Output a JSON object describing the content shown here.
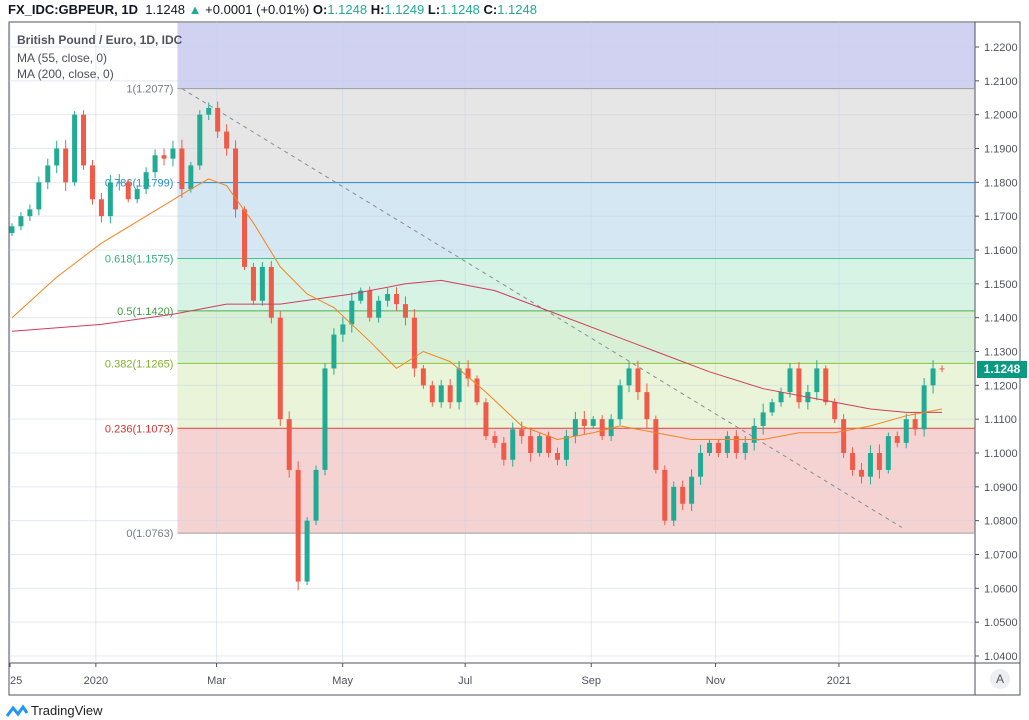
{
  "header": {
    "symbol": "FX_IDC:GBPEUR, 1D",
    "last": "1.1248",
    "arrow": "▲",
    "change": "+0.0001 (+0.01%)",
    "o_label": "O:",
    "o": "1.1248",
    "h_label": "H:",
    "h": "1.1249",
    "l_label": "L:",
    "l": "1.1248",
    "c_label": "C:",
    "c": "1.1248"
  },
  "legend": {
    "title": "British Pound / Euro, 1D, IDC",
    "ma55": "MA (55, close, 0)",
    "ma200": "MA (200, close, 0)"
  },
  "colors": {
    "up": "#22ab94",
    "down": "#f05a48",
    "ma55": "#f5841f",
    "ma200": "#d23c5d",
    "price_tag": "#0a9981"
  },
  "chart_data": {
    "type": "candlestick",
    "ylim": [
      1.04,
      1.2255
    ],
    "yticks": [
      "1.2200",
      "1.2100",
      "1.2000",
      "1.1900",
      "1.1800",
      "1.1700",
      "1.1600",
      "1.1500",
      "1.1400",
      "1.1300",
      "1.1200",
      "1.1100",
      "1.1000",
      "1.0900",
      "1.0800",
      "1.0700",
      "1.0600",
      "1.0500",
      "1.0400"
    ],
    "xticks": [
      {
        "label": "25",
        "i": 0
      },
      {
        "label": "2020",
        "i": 9.6
      },
      {
        "label": "Mar",
        "i": 23.1
      },
      {
        "label": "May",
        "i": 37.2
      },
      {
        "label": "Jul",
        "i": 50.9
      },
      {
        "label": "Sep",
        "i": 65
      },
      {
        "label": "Nov",
        "i": 78.9
      },
      {
        "label": "2021",
        "i": 92.7
      }
    ],
    "closes": [
      1.167,
      1.17,
      1.172,
      1.18,
      1.185,
      1.19,
      1.18,
      1.2,
      1.185,
      1.175,
      1.17,
      1.18,
      1.18,
      1.175,
      1.178,
      1.183,
      1.188,
      1.187,
      1.19,
      1.178,
      1.185,
      1.2,
      1.202,
      1.195,
      1.19,
      1.172,
      1.155,
      1.145,
      1.155,
      1.14,
      1.11,
      1.095,
      1.062,
      1.08,
      1.095,
      1.125,
      1.135,
      1.138,
      1.145,
      1.148,
      1.14,
      1.145,
      1.147,
      1.144,
      1.14,
      1.125,
      1.12,
      1.115,
      1.12,
      1.115,
      1.125,
      1.122,
      1.115,
      1.105,
      1.103,
      1.098,
      1.107,
      1.105,
      1.1,
      1.105,
      1.1,
      1.098,
      1.105,
      1.11,
      1.108,
      1.11,
      1.105,
      1.11,
      1.12,
      1.125,
      1.118,
      1.11,
      1.095,
      1.08,
      1.09,
      1.085,
      1.093,
      1.1,
      1.103,
      1.1,
      1.105,
      1.1,
      1.103,
      1.108,
      1.112,
      1.115,
      1.118,
      1.125,
      1.115,
      1.118,
      1.125,
      1.115,
      1.11,
      1.1,
      1.095,
      1.093,
      1.1,
      1.095,
      1.105,
      1.103,
      1.11,
      1.107,
      1.12,
      1.125,
      1.1248
    ],
    "ma55": [
      [
        0,
        1.14
      ],
      [
        5,
        1.152
      ],
      [
        10,
        1.162
      ],
      [
        15,
        1.17
      ],
      [
        20,
        1.178
      ],
      [
        22,
        1.181
      ],
      [
        24,
        1.179
      ],
      [
        27,
        1.168
      ],
      [
        30,
        1.155
      ],
      [
        33,
        1.147
      ],
      [
        36,
        1.143
      ],
      [
        40,
        1.133
      ],
      [
        43,
        1.125
      ],
      [
        46,
        1.13
      ],
      [
        49,
        1.127
      ],
      [
        53,
        1.118
      ],
      [
        57,
        1.108
      ],
      [
        61,
        1.104
      ],
      [
        65,
        1.106
      ],
      [
        68,
        1.108
      ],
      [
        72,
        1.106
      ],
      [
        76,
        1.104
      ],
      [
        80,
        1.104
      ],
      [
        84,
        1.104
      ],
      [
        88,
        1.106
      ],
      [
        92,
        1.106
      ],
      [
        96,
        1.108
      ],
      [
        100,
        1.111
      ],
      [
        104,
        1.113
      ]
    ],
    "ma200": [
      [
        0,
        1.136
      ],
      [
        10,
        1.138
      ],
      [
        18,
        1.141
      ],
      [
        24,
        1.144
      ],
      [
        30,
        1.144
      ],
      [
        38,
        1.147
      ],
      [
        44,
        1.15
      ],
      [
        48,
        1.151
      ],
      [
        54,
        1.148
      ],
      [
        60,
        1.142
      ],
      [
        66,
        1.136
      ],
      [
        72,
        1.13
      ],
      [
        78,
        1.124
      ],
      [
        84,
        1.119
      ],
      [
        90,
        1.116
      ],
      [
        96,
        1.113
      ],
      [
        100,
        1.112
      ],
      [
        104,
        1.112
      ]
    ],
    "trendline": [
      [
        19,
        1.2077
      ],
      [
        99.5,
        1.078
      ]
    ],
    "fib": {
      "start_i": 18.5,
      "levels": [
        {
          "label": "1(1.2077)",
          "value": 1.2077,
          "line": "#9e9e9e",
          "fill": "#e6e6e6",
          "labelColor": "#787b86"
        },
        {
          "label": "0.786(1.1799)",
          "value": 1.1799,
          "line": "#2a8ad0",
          "fill": "#d4e7f3",
          "labelColor": "#2a8ad0"
        },
        {
          "label": "0.618(1.1575)",
          "value": 1.1575,
          "line": "#43c48f",
          "fill": "#d6f3e6",
          "labelColor": "#2fb07a"
        },
        {
          "label": "0.5(1.1420)",
          "value": 1.142,
          "line": "#4caf50",
          "fill": "#d8f1d6",
          "labelColor": "#3e9c3f"
        },
        {
          "label": "0.382(1.1265)",
          "value": 1.1265,
          "line": "#8fc23d",
          "fill": "#eaf4d8",
          "labelColor": "#84b02c"
        },
        {
          "label": "0.236(1.1073)",
          "value": 1.1073,
          "line": "#e0443f",
          "fill": "#f5d3d3",
          "labelColor": "#d6332e"
        },
        {
          "label": "0(1.0763)",
          "value": 1.0763,
          "line": "#9e9e9e",
          "fill": "",
          "labelColor": "#787b86"
        }
      ],
      "top_fill": "#d1d1f2"
    }
  },
  "price_tag": "1.1248",
  "auto_button": "A",
  "branding": "TradingView"
}
